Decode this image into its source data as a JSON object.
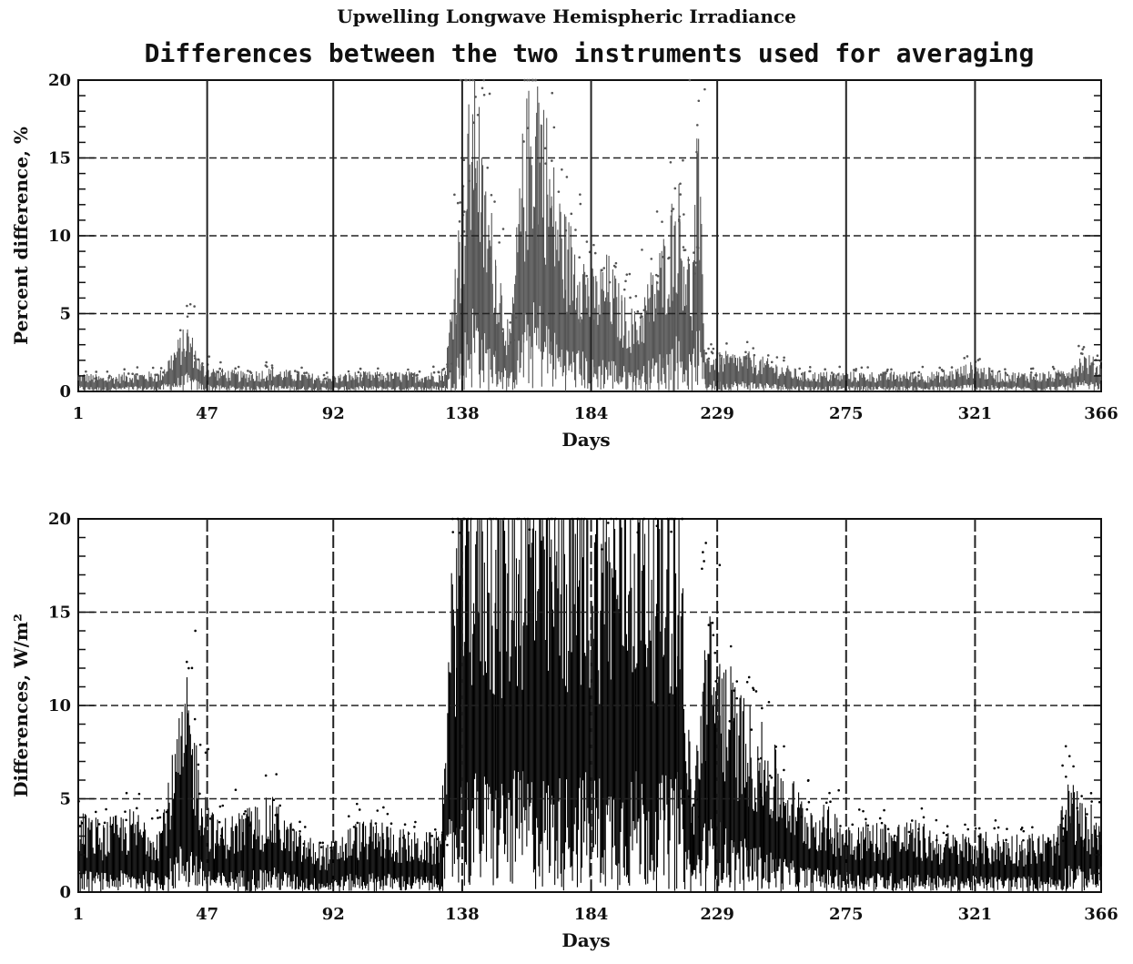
{
  "suptitle": "Upwelling Longwave Hemispheric Irradiance",
  "subtitle": "Differences between the two instruments used for averaging",
  "chart_data": [
    {
      "type": "scatter",
      "title": "",
      "xlabel": "Days",
      "ylabel": "Percent difference, %",
      "xlim": [
        1,
        366
      ],
      "ylim": [
        0,
        20
      ],
      "x_ticks": [
        1,
        47,
        92,
        138,
        184,
        229,
        275,
        321,
        366
      ],
      "y_ticks": [
        0,
        5,
        10,
        15,
        20
      ],
      "grid": {
        "vertical_days": [
          47,
          92,
          138,
          184,
          229,
          275,
          321
        ],
        "horizontal_dashed": [
          5,
          10,
          15
        ]
      },
      "marker_color": "#555555",
      "series": [
        {
          "x_days": [
            1,
            10,
            20,
            30,
            40,
            45,
            50,
            60,
            70,
            80,
            90,
            100,
            110,
            120,
            130,
            132,
            136,
            138,
            140,
            143,
            145,
            150,
            155,
            160,
            165,
            170,
            175,
            180,
            185,
            190,
            195,
            200,
            205,
            210,
            213,
            215,
            218,
            220,
            222,
            225,
            230,
            240,
            250,
            260,
            270,
            280,
            290,
            300,
            310,
            320,
            330,
            340,
            350,
            360,
            366
          ],
          "y_percent": [
            1.0,
            0.8,
            1.0,
            1.0,
            3.5,
            1.5,
            1.2,
            1.0,
            1.2,
            1.0,
            0.8,
            1.0,
            1.0,
            1.0,
            1.0,
            1.2,
            8.0,
            10.0,
            14.0,
            19.0,
            12.0,
            8.0,
            3.0,
            14.0,
            18.0,
            12.0,
            9.0,
            8.0,
            6.0,
            7.0,
            5.0,
            4.0,
            6.0,
            8.0,
            10.0,
            11.0,
            8.0,
            6.0,
            14.0,
            2.0,
            2.0,
            2.0,
            1.5,
            1.0,
            1.0,
            1.0,
            1.0,
            1.0,
            1.0,
            1.5,
            1.0,
            1.0,
            1.0,
            2.0,
            1.5
          ]
        }
      ]
    },
    {
      "type": "scatter",
      "title": "",
      "xlabel": "Days",
      "ylabel": "Differences, W/m²",
      "xlim": [
        1,
        366
      ],
      "ylim": [
        0,
        20
      ],
      "x_ticks": [
        1,
        47,
        92,
        138,
        184,
        229,
        275,
        321,
        366
      ],
      "y_ticks": [
        0,
        5,
        10,
        15,
        20
      ],
      "grid": {
        "vertical_days": [
          47,
          92,
          138,
          184,
          229,
          275,
          321
        ],
        "horizontal_dashed": [
          5,
          10,
          15
        ]
      },
      "marker_color": "#000000",
      "series": [
        {
          "x_days": [
            1,
            10,
            20,
            30,
            40,
            45,
            50,
            60,
            70,
            80,
            90,
            100,
            110,
            120,
            130,
            136,
            140,
            150,
            160,
            170,
            180,
            190,
            200,
            210,
            215,
            220,
            225,
            230,
            235,
            240,
            245,
            250,
            260,
            270,
            280,
            290,
            300,
            310,
            320,
            330,
            340,
            350,
            355,
            360,
            366
          ],
          "y_wm2": [
            3.5,
            3.0,
            3.5,
            3.0,
            9.0,
            5.0,
            3.0,
            3.5,
            4.0,
            2.5,
            2.0,
            3.0,
            3.0,
            2.5,
            2.5,
            18.0,
            19.0,
            18.0,
            19.0,
            18.0,
            19.0,
            18.0,
            19.0,
            18.0,
            19.0,
            4.0,
            12.0,
            11.0,
            9.0,
            8.0,
            7.0,
            6.0,
            4.0,
            3.5,
            3.0,
            3.0,
            3.0,
            2.5,
            2.5,
            2.5,
            2.5,
            2.5,
            5.0,
            3.5,
            4.0
          ]
        }
      ]
    }
  ]
}
